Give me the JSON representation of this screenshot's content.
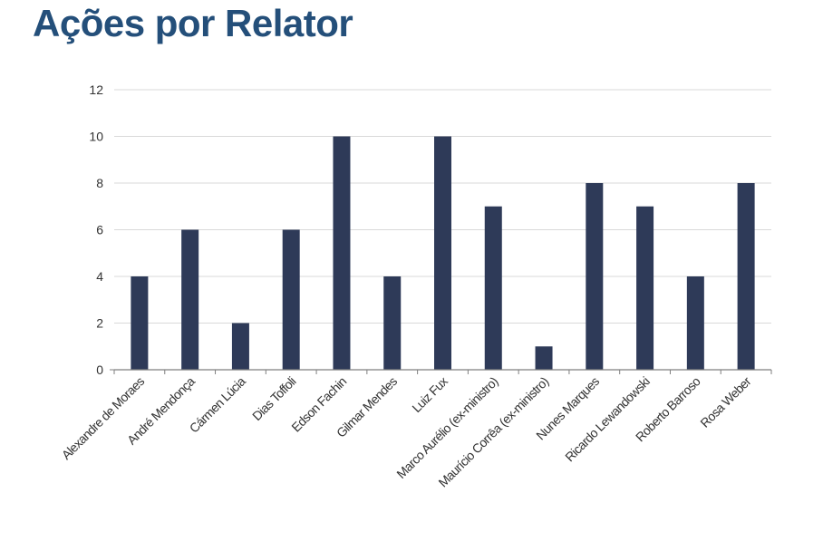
{
  "title": "Ações por Relator",
  "colors": {
    "title": "#244f7a",
    "bar": "#2e3a58",
    "grid": "#d9d9d9",
    "axis": "#7f7f7f"
  },
  "chart_data": {
    "type": "bar",
    "title": "Ações por Relator",
    "xlabel": "",
    "ylabel": "",
    "ylim": [
      0,
      12
    ],
    "yticks": [
      "0",
      "2",
      "4",
      "6",
      "8",
      "10",
      "12"
    ],
    "grid": true,
    "categories": [
      "Alexandre de Moraes",
      "André Mendonça",
      "Cármen Lúcia",
      "Dias Toffoli",
      "Edson Fachin",
      "Gilmar Mendes",
      "Luiz Fux",
      "Marco Aurélio (ex-ministro)",
      "Maurício Corrêa (ex-ministro)",
      "Nunes Marques",
      "Ricardo Lewandowski",
      "Roberto Barroso",
      "Rosa Weber"
    ],
    "values": [
      4,
      6,
      2,
      6,
      10,
      4,
      10,
      7,
      1,
      8,
      7,
      4,
      8
    ]
  }
}
